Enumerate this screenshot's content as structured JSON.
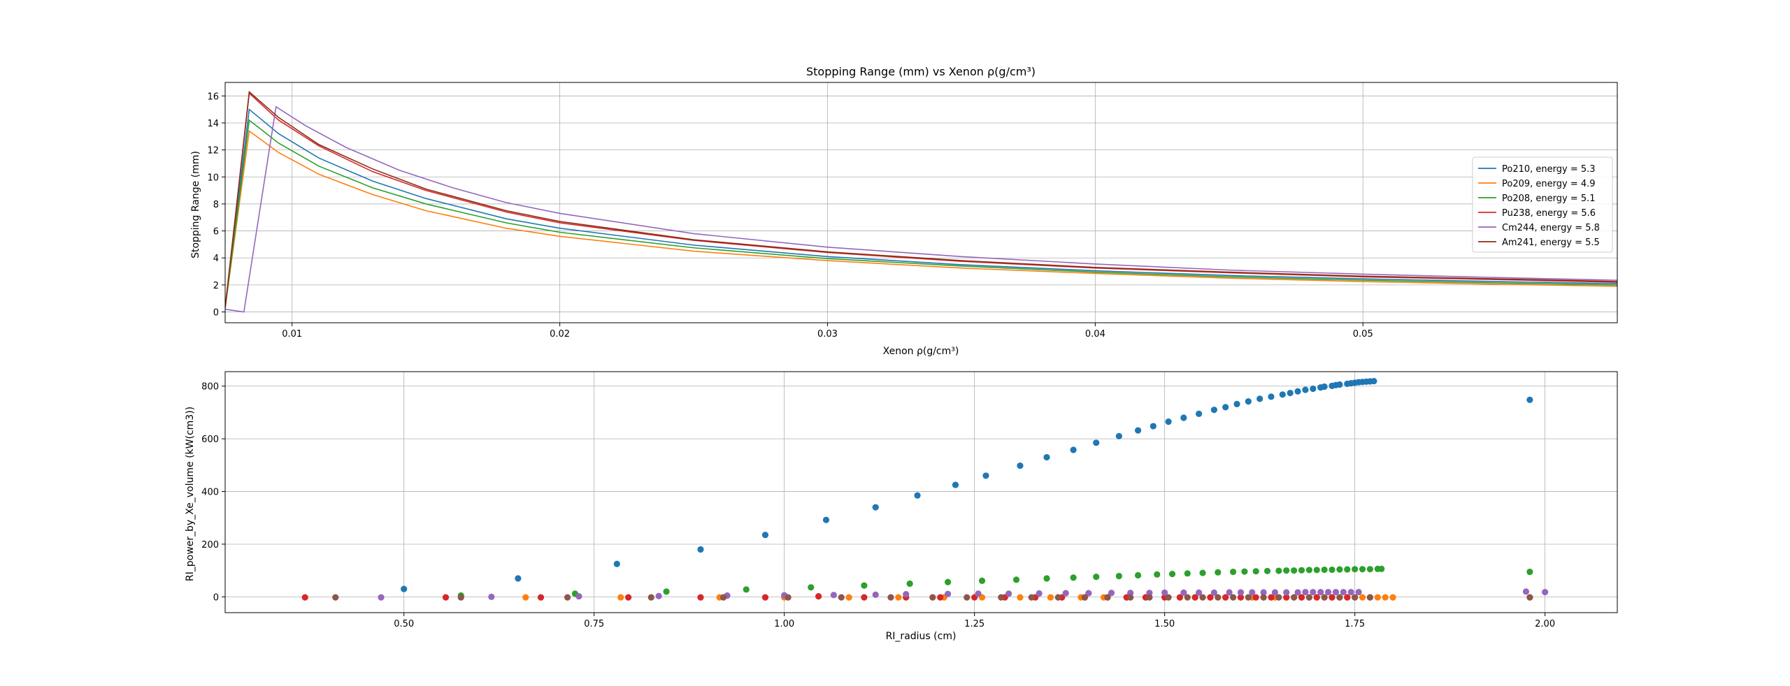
{
  "chart_data": [
    {
      "type": "line",
      "title": "Stopping Range (mm) vs Xenon ρ(g/cm³)",
      "xlabel": "Xenon ρ(g/cm³)",
      "ylabel": "Stopping Range (mm)",
      "xlim": [
        0.0075,
        0.0595
      ],
      "ylim": [
        -0.8,
        17.0
      ],
      "xticks": [
        0.01,
        0.02,
        0.03,
        0.04,
        0.05
      ],
      "xtick_labels": [
        "0.01",
        "0.02",
        "0.03",
        "0.04",
        "0.05"
      ],
      "yticks": [
        0,
        2,
        4,
        6,
        8,
        10,
        12,
        14,
        16
      ],
      "ytick_labels": [
        "0",
        "2",
        "4",
        "6",
        "8",
        "10",
        "12",
        "14",
        "16"
      ],
      "grid": true,
      "legend_position": "right",
      "series": [
        {
          "name": "Po210, energy = 5.3",
          "color": "#1f77b4",
          "x": [
            0.0075,
            0.0084,
            0.0095,
            0.011,
            0.013,
            0.015,
            0.018,
            0.02,
            0.025,
            0.03,
            0.035,
            0.04,
            0.045,
            0.05,
            0.055,
            0.0595
          ],
          "y": [
            0.3,
            15.0,
            13.2,
            11.4,
            9.7,
            8.4,
            6.9,
            6.2,
            4.95,
            4.1,
            3.5,
            3.05,
            2.7,
            2.45,
            2.25,
            2.1
          ]
        },
        {
          "name": "Po209, energy = 4.9",
          "color": "#ff7f0e",
          "x": [
            0.0075,
            0.0084,
            0.0095,
            0.011,
            0.013,
            0.015,
            0.018,
            0.02,
            0.025,
            0.03,
            0.035,
            0.04,
            0.045,
            0.05,
            0.055,
            0.0595
          ],
          "y": [
            0.3,
            13.4,
            11.8,
            10.2,
            8.7,
            7.5,
            6.2,
            5.6,
            4.5,
            3.8,
            3.25,
            2.85,
            2.5,
            2.25,
            2.05,
            1.9
          ]
        },
        {
          "name": "Po208, energy = 5.1",
          "color": "#2ca02c",
          "x": [
            0.0075,
            0.0084,
            0.0095,
            0.011,
            0.013,
            0.015,
            0.018,
            0.02,
            0.025,
            0.03,
            0.035,
            0.04,
            0.045,
            0.05,
            0.055,
            0.0595
          ],
          "y": [
            0.3,
            14.2,
            12.5,
            10.8,
            9.2,
            8.0,
            6.6,
            5.9,
            4.75,
            3.95,
            3.4,
            2.95,
            2.6,
            2.35,
            2.15,
            2.0
          ]
        },
        {
          "name": "Pu238, energy = 5.6",
          "color": "#d62728",
          "x": [
            0.0075,
            0.0084,
            0.0095,
            0.011,
            0.013,
            0.015,
            0.018,
            0.02,
            0.025,
            0.03,
            0.035,
            0.04,
            0.045,
            0.05,
            0.055,
            0.0595
          ],
          "y": [
            0.3,
            16.2,
            14.2,
            12.3,
            10.4,
            9.0,
            7.4,
            6.6,
            5.3,
            4.4,
            3.75,
            3.25,
            2.9,
            2.6,
            2.4,
            2.2
          ]
        },
        {
          "name": "Cm244, energy = 5.8",
          "color": "#9467bd",
          "x": [
            0.0075,
            0.0082,
            0.0094,
            0.0105,
            0.012,
            0.014,
            0.016,
            0.018,
            0.02,
            0.025,
            0.03,
            0.035,
            0.04,
            0.045,
            0.05,
            0.055,
            0.0595
          ],
          "y": [
            0.2,
            0.0,
            15.2,
            13.8,
            12.2,
            10.5,
            9.2,
            8.1,
            7.3,
            5.8,
            4.8,
            4.1,
            3.55,
            3.1,
            2.8,
            2.55,
            2.35
          ]
        },
        {
          "name": "Am241, energy = 5.5",
          "color": "#8c2d19",
          "x": [
            0.0075,
            0.0084,
            0.0095,
            0.011,
            0.013,
            0.015,
            0.018,
            0.02,
            0.025,
            0.03,
            0.035,
            0.04,
            0.045,
            0.05,
            0.055,
            0.0595
          ],
          "y": [
            0.3,
            16.3,
            14.4,
            12.4,
            10.6,
            9.1,
            7.5,
            6.7,
            5.35,
            4.45,
            3.8,
            3.3,
            2.95,
            2.65,
            2.45,
            2.25
          ]
        }
      ]
    },
    {
      "type": "scatter",
      "title": "",
      "xlabel": "RI_radius (cm)",
      "ylabel": "RI_power_by_Xe_volume (kW(cm3))",
      "xlim": [
        0.265,
        2.095
      ],
      "ylim": [
        -60,
        855
      ],
      "xticks": [
        0.5,
        0.75,
        1.0,
        1.25,
        1.5,
        1.75,
        2.0
      ],
      "xtick_labels": [
        "0.50",
        "0.75",
        "1.00",
        "1.25",
        "1.50",
        "1.75",
        "2.00"
      ],
      "yticks": [
        0,
        200,
        400,
        600,
        800
      ],
      "ytick_labels": [
        "0",
        "200",
        "400",
        "600",
        "800"
      ],
      "grid": true,
      "series": [
        {
          "color": "#1f77b4",
          "x": [
            0.5,
            0.65,
            0.78,
            0.89,
            0.975,
            1.055,
            1.12,
            1.175,
            1.225,
            1.265,
            1.31,
            1.345,
            1.38,
            1.41,
            1.44,
            1.465,
            1.485,
            1.505,
            1.525,
            1.545,
            1.565,
            1.58,
            1.595,
            1.61,
            1.625,
            1.64,
            1.655,
            1.665,
            1.675,
            1.685,
            1.695,
            1.705,
            1.71,
            1.72,
            1.725,
            1.73,
            1.74,
            1.745,
            1.75,
            1.755,
            1.76,
            1.765,
            1.77,
            1.775,
            1.98
          ],
          "y": [
            30,
            70,
            125,
            180,
            235,
            292,
            340,
            385,
            425,
            460,
            498,
            530,
            558,
            585,
            610,
            632,
            648,
            665,
            680,
            695,
            710,
            720,
            732,
            742,
            752,
            760,
            768,
            774,
            780,
            786,
            790,
            795,
            798,
            801,
            804,
            806,
            809,
            811,
            813,
            815,
            816,
            817,
            818,
            819,
            748
          ]
        },
        {
          "color": "#2ca02c",
          "x": [
            0.575,
            0.725,
            0.845,
            0.95,
            1.035,
            1.105,
            1.165,
            1.215,
            1.26,
            1.305,
            1.345,
            1.38,
            1.41,
            1.44,
            1.465,
            1.49,
            1.51,
            1.53,
            1.55,
            1.57,
            1.59,
            1.605,
            1.62,
            1.635,
            1.65,
            1.66,
            1.67,
            1.68,
            1.69,
            1.7,
            1.71,
            1.72,
            1.73,
            1.74,
            1.75,
            1.76,
            1.77,
            1.78,
            1.785,
            1.98
          ],
          "y": [
            5,
            12,
            20,
            28,
            36,
            43,
            50,
            56,
            61,
            65,
            70,
            73,
            76,
            79,
            82,
            85,
            87,
            89,
            91,
            93,
            95,
            96,
            97,
            98,
            99,
            100,
            100,
            101,
            102,
            102,
            103,
            103,
            104,
            104,
            105,
            105,
            105,
            106,
            106,
            95
          ]
        },
        {
          "color": "#ff7f0e",
          "x": [
            0.66,
            0.785,
            0.915,
            1.0,
            1.085,
            1.15,
            1.21,
            1.26,
            1.31,
            1.35,
            1.39,
            1.42,
            1.45,
            1.475,
            1.5,
            1.52,
            1.54,
            1.56,
            1.58,
            1.6,
            1.615,
            1.63,
            1.645,
            1.66,
            1.67,
            1.68,
            1.69,
            1.7,
            1.71,
            1.72,
            1.73,
            1.74,
            1.75,
            1.76,
            1.77,
            1.78,
            1.79,
            1.8,
            1.98
          ],
          "y": [
            -2,
            -2,
            -2,
            -2,
            -2,
            -2,
            -2,
            -2,
            -2,
            -2,
            -2,
            -2,
            -2,
            -2,
            -2,
            -2,
            -2,
            -2,
            -2,
            -2,
            -2,
            -2,
            -2,
            -2,
            -2,
            -2,
            -2,
            -2,
            -2,
            -2,
            -2,
            -2,
            -2,
            -2,
            -2,
            -2,
            -2,
            -2,
            -2
          ]
        },
        {
          "color": "#d62728",
          "x": [
            0.37,
            0.555,
            0.68,
            0.795,
            0.89,
            0.975,
            1.045,
            1.105,
            1.16,
            1.205,
            1.25,
            1.29,
            1.33,
            1.365,
            1.395,
            1.425,
            1.45,
            1.475,
            1.5,
            1.52,
            1.54,
            1.56,
            1.58,
            1.6,
            1.62,
            1.64,
            1.66,
            1.68,
            1.7,
            1.72,
            1.74
          ],
          "y": [
            -2,
            -2,
            -2,
            -2,
            -2,
            -2,
            2,
            -2,
            -2,
            -2,
            -2,
            -2,
            -2,
            -2,
            -2,
            -2,
            -2,
            -2,
            -2,
            -2,
            -2,
            -2,
            -2,
            -2,
            -2,
            -2,
            -2,
            -2,
            -2,
            -2,
            -2
          ]
        },
        {
          "color": "#9467bd",
          "x": [
            0.47,
            0.615,
            0.73,
            0.835,
            0.925,
            1.0,
            1.065,
            1.12,
            1.16,
            1.215,
            1.255,
            1.295,
            1.335,
            1.37,
            1.4,
            1.43,
            1.455,
            1.48,
            1.5,
            1.525,
            1.545,
            1.565,
            1.585,
            1.6,
            1.615,
            1.63,
            1.645,
            1.66,
            1.675,
            1.685,
            1.695,
            1.705,
            1.715,
            1.725,
            1.735,
            1.745,
            1.755,
            1.975,
            2.0
          ],
          "y": [
            -2,
            0,
            2,
            3,
            5,
            6,
            7,
            8,
            10,
            11,
            12,
            12,
            13,
            14,
            14,
            15,
            15,
            15,
            16,
            16,
            16,
            16,
            17,
            17,
            17,
            17,
            17,
            17,
            17,
            18,
            18,
            18,
            18,
            18,
            18,
            18,
            18,
            20,
            18
          ]
        },
        {
          "color": "#8c564b",
          "x": [
            0.41,
            0.575,
            0.715,
            0.825,
            0.92,
            1.005,
            1.075,
            1.14,
            1.195,
            1.24,
            1.285,
            1.325,
            1.36,
            1.395,
            1.425,
            1.455,
            1.48,
            1.505,
            1.53,
            1.55,
            1.57,
            1.59,
            1.61,
            1.63,
            1.65,
            1.67,
            1.69,
            1.71,
            1.73,
            1.75,
            1.77,
            1.98
          ],
          "y": [
            -2,
            -2,
            -2,
            -2,
            -2,
            -2,
            -2,
            -2,
            -2,
            -2,
            -2,
            -2,
            -2,
            -2,
            -2,
            -2,
            -2,
            -2,
            -2,
            -2,
            -2,
            -2,
            -2,
            -2,
            -2,
            -2,
            -2,
            -2,
            -2,
            -2,
            -2,
            -2
          ]
        }
      ]
    }
  ]
}
